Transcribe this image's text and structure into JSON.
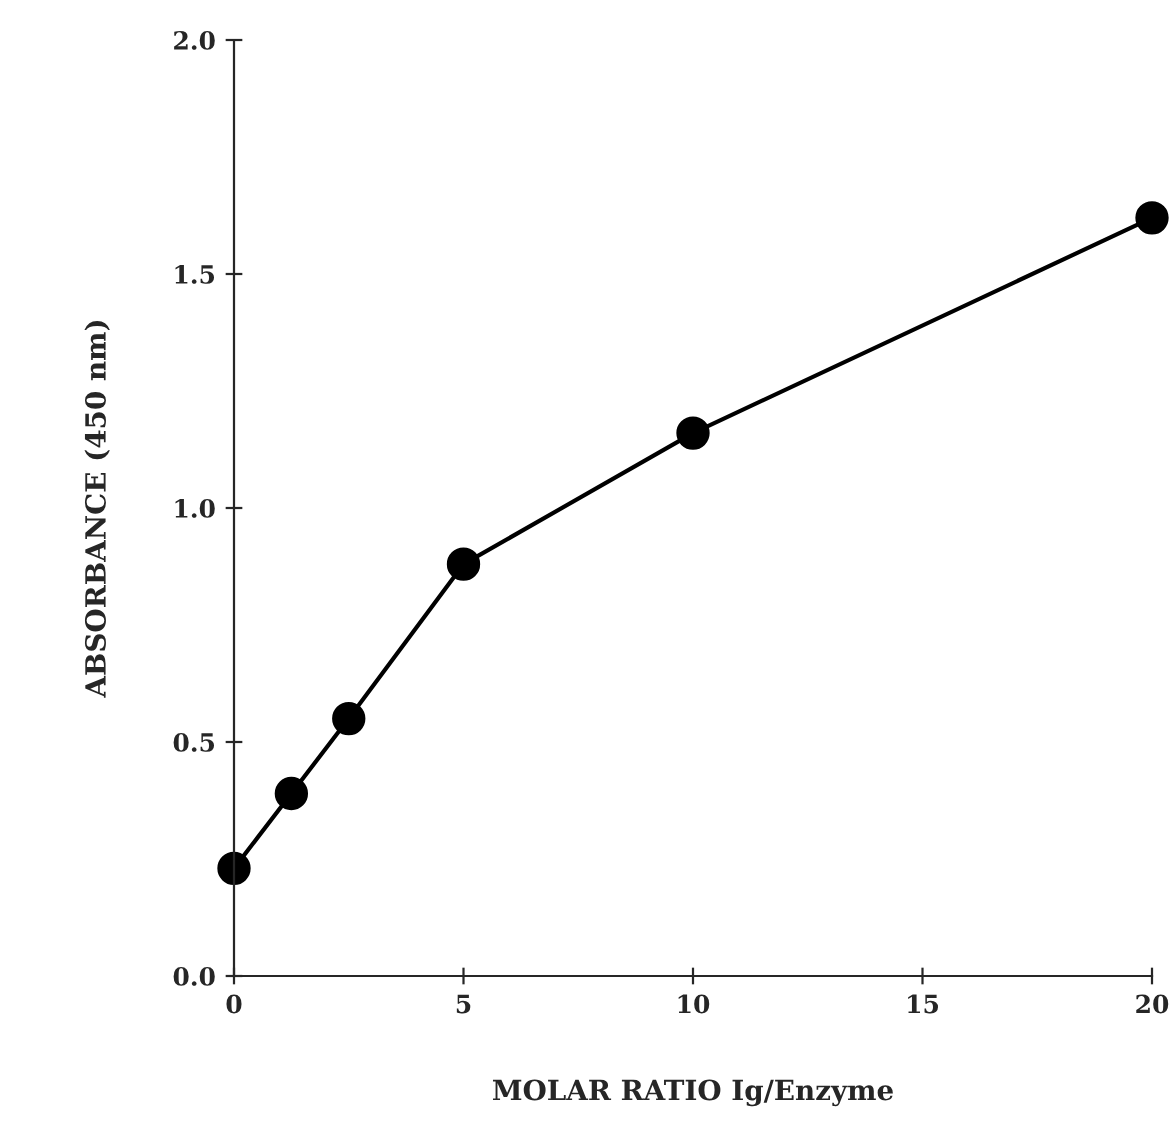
{
  "chart_data": {
    "type": "line",
    "xlabel": "MOLAR RATIO Ig/Enzyme",
    "ylabel": "ABSORBANCE (450 nm)",
    "x": [
      0,
      1.25,
      2.5,
      5,
      10,
      20
    ],
    "series": [
      {
        "color": "#000000",
        "values": [
          0.23,
          0.39,
          0.55,
          0.88,
          1.16,
          1.62
        ]
      }
    ],
    "marker": "circle",
    "line_style": "solid",
    "xlim": [
      0,
      20
    ],
    "xticks": [
      0,
      5,
      10,
      15,
      20
    ],
    "ylim": [
      0,
      2.0
    ],
    "yticks": [
      {
        "value": 0,
        "label": "0.0"
      },
      {
        "value": 0.5,
        "label": "0.5"
      },
      {
        "value": 1.0,
        "label": "1.0"
      },
      {
        "value": 1.5,
        "label": "1.5"
      },
      {
        "value": 2.0,
        "label": "2.0"
      }
    ],
    "grid": false,
    "legend": false
  }
}
